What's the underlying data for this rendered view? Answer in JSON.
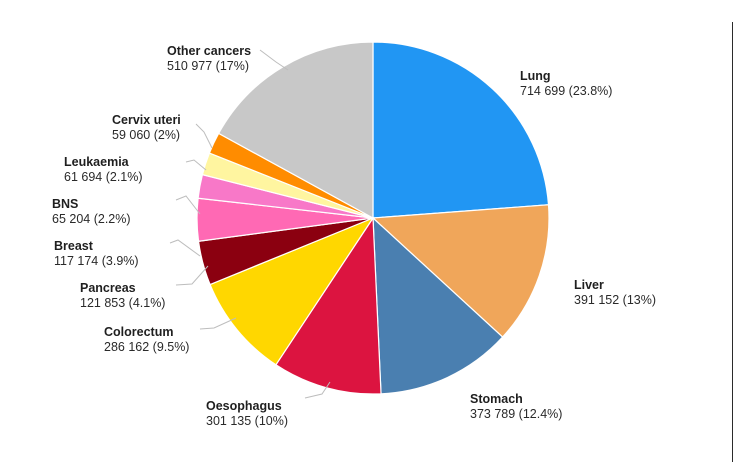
{
  "chart_data": {
    "type": "pie",
    "title": "",
    "start_angle_deg": 0,
    "direction": "clockwise",
    "slices": [
      {
        "name": "Lung",
        "value": 714699,
        "value_label": "714 699",
        "percent_label": "(23.8%)",
        "color": "#2196F3"
      },
      {
        "name": "Liver",
        "value": 391152,
        "value_label": "391 152",
        "percent_label": "(13%)",
        "color": "#F0A65A"
      },
      {
        "name": "Stomach",
        "value": 373789,
        "value_label": "373 789",
        "percent_label": "(12.4%)",
        "color": "#4A7FB0"
      },
      {
        "name": "Oesophagus",
        "value": 301135,
        "value_label": "301 135",
        "percent_label": "(10%)",
        "color": "#DC1440"
      },
      {
        "name": "Colorectum",
        "value": 286162,
        "value_label": "286 162",
        "percent_label": "(9.5%)",
        "color": "#FFD700"
      },
      {
        "name": "Pancreas",
        "value": 121853,
        "value_label": "121 853",
        "percent_label": "(4.1%)",
        "color": "#8B0010"
      },
      {
        "name": "Breast",
        "value": 117174,
        "value_label": "117 174",
        "percent_label": "(3.9%)",
        "color": "#FF69B4"
      },
      {
        "name": "BNS",
        "value": 65204,
        "value_label": "65 204",
        "percent_label": "(2.2%)",
        "color": "#F878C8"
      },
      {
        "name": "Leukaemia",
        "value": 61694,
        "value_label": "61 694",
        "percent_label": "(2.1%)",
        "color": "#FFF5A0"
      },
      {
        "name": "Cervix uteri",
        "value": 59060,
        "value_label": "59 060",
        "percent_label": "(2%)",
        "color": "#FF8C00"
      },
      {
        "name": "Other cancers",
        "value": 510977,
        "value_label": "510 977",
        "percent_label": "(17%)",
        "color": "#C8C8C8"
      }
    ]
  }
}
